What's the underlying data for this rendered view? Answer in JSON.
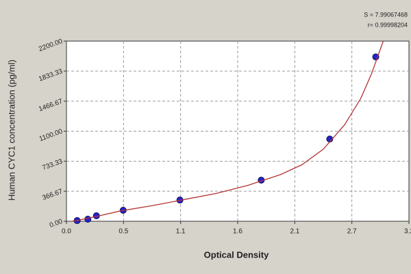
{
  "chart_data": {
    "type": "scatter",
    "x_label": "Optical Density",
    "y_label": "Human  CYC1 concentration (pg/ml)",
    "annotations": [
      "S = 7.99067468",
      "r= 0.99998204"
    ],
    "series": [
      {
        "color": "#2424c8",
        "x": [
          0.1,
          0.2,
          0.28,
          0.53,
          1.06,
          1.82,
          2.46,
          2.89
        ],
        "values": [
          8,
          25,
          67,
          134,
          259,
          502,
          1004,
          2007
        ]
      },
      {
        "color": "#b23232",
        "line": true,
        "x": [
          0.05,
          0.1,
          0.3,
          0.5,
          0.8,
          1.1,
          1.4,
          1.7,
          2.0,
          2.2,
          2.4,
          2.6,
          2.75,
          2.85,
          2.96
        ],
        "values": [
          0,
          10,
          65,
          125,
          190,
          265,
          340,
          440,
          570,
          690,
          880,
          1180,
          1500,
          1800,
          2200
        ]
      }
    ],
    "xlim": [
      0,
      3.2
    ],
    "xticks": [
      {
        "value": 0,
        "label": "0.0"
      },
      {
        "value": 0.5333,
        "label": "0.5"
      },
      {
        "value": 1.0667,
        "label": "1.1"
      },
      1.6,
      {
        "value": 2.1333,
        "label": "2.1"
      },
      {
        "value": 2.6667,
        "label": "2.7"
      },
      3.2
    ],
    "ylim": [
      0,
      2200
    ],
    "yticks": [
      {
        "value": 0,
        "label": "0.00"
      },
      {
        "value": 366.67,
        "label": "366.67"
      },
      {
        "value": 733.33,
        "label": "733.33"
      },
      {
        "value": 1100,
        "label": "1100.00"
      },
      {
        "value": 1466.67,
        "label": "1466.67"
      },
      {
        "value": 1833.33,
        "label": "1833.33"
      },
      {
        "value": 2200,
        "label": "2200.00"
      }
    ],
    "grid": true
  }
}
